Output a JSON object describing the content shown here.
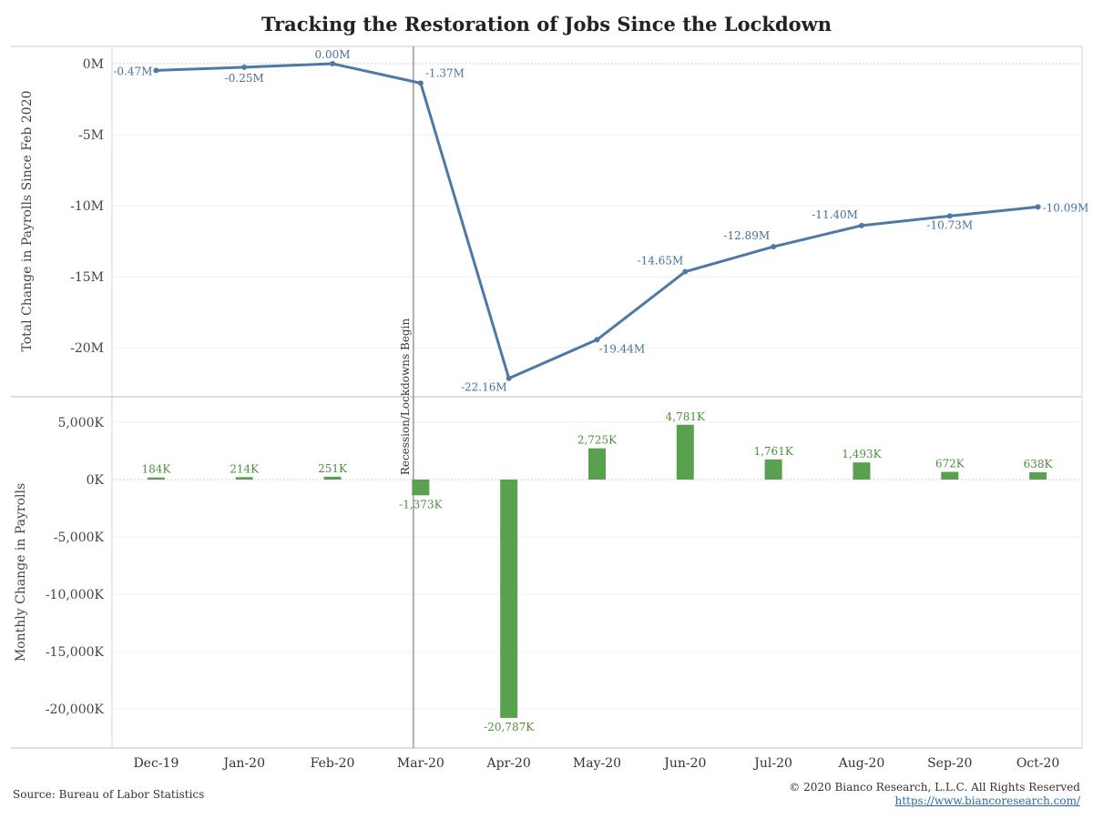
{
  "title": "Tracking the Restoration of Jobs Since the Lockdown",
  "footer": {
    "source": "Source: Bureau of Labor Statistics",
    "copyright": "© 2020 Bianco Research, L.L.C. All Rights Reserved",
    "link": "https://www.biancoresearch.com/"
  },
  "colors": {
    "line": "#4e79a7",
    "bar": "#59a14f",
    "bar_label": "#4e8f3f",
    "line_label": "#4a6f9c"
  },
  "chart_data": [
    {
      "type": "line",
      "title": "Tracking the Restoration of Jobs Since the Lockdown",
      "ylabel": "Total Change in Payrolls Since Feb 2020",
      "ylim": [
        -23,
        0.5
      ],
      "yticks": [
        0,
        -5,
        -10,
        -15,
        -20
      ],
      "ytick_labels": [
        "0M",
        "-5M",
        "-10M",
        "-15M",
        "-20M"
      ],
      "categories": [
        "Dec-19",
        "Jan-20",
        "Feb-20",
        "Mar-20",
        "Apr-20",
        "May-20",
        "Jun-20",
        "Jul-20",
        "Aug-20",
        "Sep-20",
        "Oct-20"
      ],
      "values": [
        -0.47,
        -0.25,
        0.0,
        -1.37,
        -22.16,
        -19.44,
        -14.65,
        -12.89,
        -11.4,
        -10.73,
        -10.09
      ],
      "labels": [
        "-0.47M",
        "-0.25M",
        "0.00M",
        "-1.37M",
        "-22.16M",
        "-19.44M",
        "-14.65M",
        "-12.89M",
        "-11.40M",
        "-10.73M",
        "-10.09M"
      ],
      "grid": true,
      "annotation": "Recession/Lockdowns Begin"
    },
    {
      "type": "bar",
      "ylabel": "Monthly Change in Payrolls",
      "ylim": [
        -23000,
        7200
      ],
      "yticks": [
        5000,
        0,
        -5000,
        -10000,
        -15000,
        -20000
      ],
      "ytick_labels": [
        "5,000K",
        "0K",
        "-5,000K",
        "-10,000K",
        "-15,000K",
        "-20,000K"
      ],
      "categories": [
        "Dec-19",
        "Jan-20",
        "Feb-20",
        "Mar-20",
        "Apr-20",
        "May-20",
        "Jun-20",
        "Jul-20",
        "Aug-20",
        "Sep-20",
        "Oct-20"
      ],
      "values": [
        184,
        214,
        251,
        -1373,
        -20787,
        2725,
        4781,
        1761,
        1493,
        672,
        638
      ],
      "labels": [
        "184K",
        "214K",
        "251K",
        "-1,373K",
        "-20,787K",
        "2,725K",
        "4,781K",
        "1,761K",
        "1,493K",
        "672K",
        "638K"
      ],
      "grid": true
    }
  ]
}
